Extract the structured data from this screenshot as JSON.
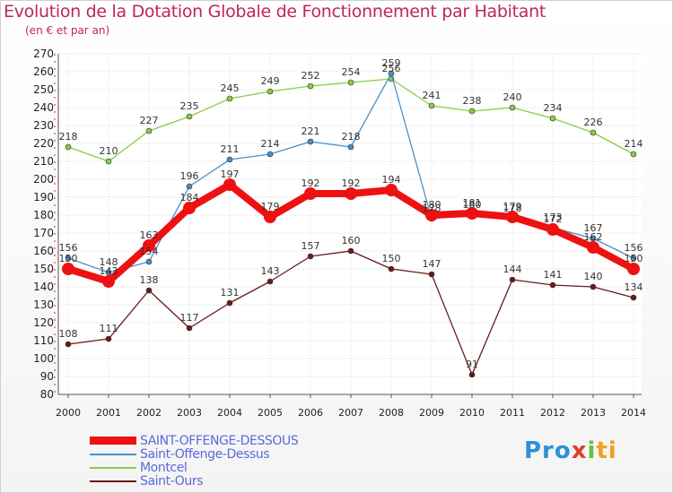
{
  "chart_data": {
    "type": "line",
    "title": "Evolution de la Dotation Globale de Fonctionnement par Habitant",
    "subtitle": "(en € et par an)",
    "xlabel": "",
    "ylabel": "",
    "ylim": [
      80,
      270
    ],
    "yticks": [
      80,
      90,
      100,
      110,
      120,
      130,
      140,
      150,
      160,
      170,
      180,
      190,
      200,
      210,
      220,
      230,
      240,
      250,
      260,
      270
    ],
    "grid": true,
    "legend_position": "bottom-left",
    "x": [
      "2000",
      "2001",
      "2002",
      "2003",
      "2004",
      "2005",
      "2006",
      "2007",
      "2008",
      "2009",
      "2010",
      "2011",
      "2012",
      "2013",
      "2014"
    ],
    "series": [
      {
        "name": "SAINT-OFFENGE-DESSOUS",
        "color": "#ee1111",
        "values": [
          150,
          143,
          163,
          184,
          197,
          179,
          192,
          192,
          194,
          180,
          181,
          179,
          172,
          162,
          150
        ]
      },
      {
        "name": "Saint-Offenge-Dessus",
        "color": "#4a90c8",
        "values": [
          156,
          148,
          154,
          196,
          211,
          214,
          221,
          218,
          259,
          178,
          180,
          178,
          173,
          167,
          156
        ]
      },
      {
        "name": "Montcel",
        "color": "#88cc44",
        "values": [
          218,
          210,
          227,
          235,
          245,
          249,
          252,
          254,
          256,
          241,
          238,
          240,
          234,
          226,
          214
        ]
      },
      {
        "name": "Saint-Ours",
        "color": "#6b1a1a",
        "values": [
          108,
          111,
          138,
          117,
          131,
          143,
          157,
          160,
          150,
          147,
          91,
          144,
          141,
          140,
          134
        ]
      }
    ]
  },
  "logo": {
    "p1": "Pro",
    "p2": "x",
    "p3": "i",
    "p4": "ti"
  }
}
